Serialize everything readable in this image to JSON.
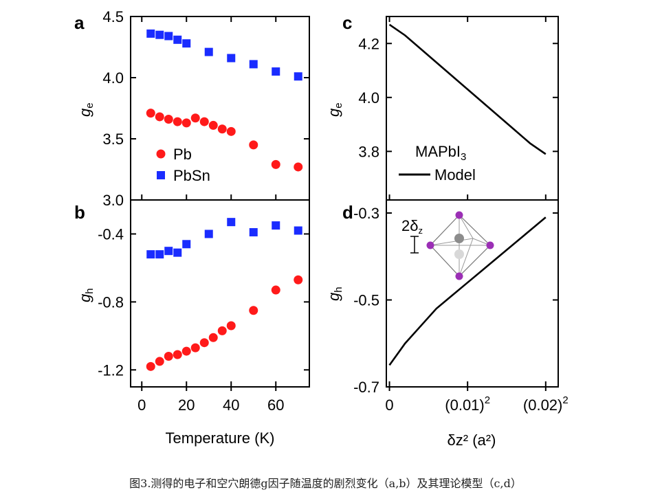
{
  "caption": "图3.测得的电子和空穴朗德g因子随温度的剧烈变化（a,b）及其理论模型（c,d）",
  "colors": {
    "pb": "#ff1a1a",
    "pbsn": "#1a2cff",
    "line": "#000000",
    "atom_purple": "#9b2fb5",
    "atom_gray": "#8c8c8c"
  },
  "chart_data": [
    {
      "panel": "a",
      "type": "scatter",
      "ylabel": "g",
      "ylabel_sub": "e",
      "xlim": [
        -5,
        75
      ],
      "ylim": [
        3.0,
        4.5
      ],
      "yticks": [
        3.0,
        3.5,
        4.0,
        4.5
      ],
      "ytick_labels": [
        "3.0",
        "3.5",
        "4.0",
        "4.5"
      ],
      "legend": {
        "placement": "bottom-left",
        "entries": [
          "Pb",
          "PbSn"
        ]
      },
      "series": [
        {
          "name": "PbSn",
          "marker": "square",
          "x": [
            4,
            8,
            12,
            16,
            20,
            30,
            40,
            50,
            60,
            70
          ],
          "y": [
            4.36,
            4.35,
            4.34,
            4.31,
            4.28,
            4.21,
            4.16,
            4.11,
            4.05,
            4.01
          ]
        },
        {
          "name": "Pb",
          "marker": "circle",
          "x": [
            4,
            8,
            12,
            16,
            20,
            24,
            28,
            32,
            36,
            40,
            50,
            60,
            70
          ],
          "y": [
            3.71,
            3.68,
            3.66,
            3.64,
            3.63,
            3.67,
            3.64,
            3.61,
            3.58,
            3.56,
            3.45,
            3.29,
            3.27
          ]
        }
      ]
    },
    {
      "panel": "b",
      "type": "scatter",
      "ylabel": "g",
      "ylabel_sub": "h",
      "xlabel": "Temperature (K)",
      "xlim": [
        -5,
        75
      ],
      "ylim": [
        -1.3,
        -0.2
      ],
      "xticks": [
        0,
        20,
        40,
        60
      ],
      "xtick_labels": [
        "0",
        "20",
        "40",
        "60"
      ],
      "yticks": [
        -1.2,
        -0.8,
        -0.4
      ],
      "ytick_labels": [
        "-1.2",
        "-0.8",
        "-0.4"
      ],
      "series": [
        {
          "name": "PbSn",
          "marker": "square",
          "x": [
            4,
            8,
            12,
            16,
            20,
            30,
            40,
            50,
            60,
            70
          ],
          "y": [
            -0.52,
            -0.52,
            -0.5,
            -0.51,
            -0.46,
            -0.4,
            -0.33,
            -0.39,
            -0.35,
            -0.38
          ]
        },
        {
          "name": "Pb",
          "marker": "circle",
          "x": [
            4,
            8,
            12,
            16,
            20,
            24,
            28,
            32,
            36,
            40,
            50,
            60,
            70
          ],
          "y": [
            -1.18,
            -1.15,
            -1.12,
            -1.11,
            -1.09,
            -1.07,
            -1.04,
            -1.01,
            -0.97,
            -0.94,
            -0.85,
            -0.73,
            -0.67
          ]
        }
      ]
    },
    {
      "panel": "c",
      "type": "line",
      "ylabel": "g",
      "ylabel_sub": "e",
      "xlim": [
        -0.02,
        1.08
      ],
      "ylim": [
        3.62,
        4.3
      ],
      "yticks": [
        3.8,
        4.0,
        4.2
      ],
      "ytick_labels": [
        "3.8",
        "4.0",
        "4.2"
      ],
      "legend": {
        "placement": "bottom-right",
        "material": "MAPbI",
        "material_sub": "3",
        "entries": [
          "Model"
        ]
      },
      "series": [
        {
          "name": "Model",
          "x": [
            0,
            0.1,
            0.2,
            0.3,
            0.4,
            0.5,
            0.6,
            0.7,
            0.8,
            0.9,
            1.0
          ],
          "y": [
            4.27,
            4.23,
            4.18,
            4.13,
            4.08,
            4.03,
            3.98,
            3.93,
            3.88,
            3.83,
            3.79
          ]
        }
      ]
    },
    {
      "panel": "d",
      "type": "line",
      "ylabel": "g",
      "ylabel_sub": "h",
      "xlabel": "δz² (a²)",
      "xlim": [
        -0.02,
        1.08
      ],
      "ylim": [
        -0.7,
        -0.27
      ],
      "xticks": [
        0,
        0.5,
        1.0
      ],
      "xtick_labels": [
        "0",
        "(0.01)",
        "(0.02)"
      ],
      "xtick_sup": [
        "",
        "2",
        "2"
      ],
      "yticks": [
        -0.7,
        -0.5,
        -0.3
      ],
      "ytick_labels": [
        "-0.7",
        "-0.5",
        "-0.3"
      ],
      "inset": {
        "label": "2δ",
        "label_sub": "z"
      },
      "series": [
        {
          "name": "Model",
          "x": [
            0,
            0.1,
            0.2,
            0.3,
            0.4,
            0.5,
            0.6,
            0.7,
            0.8,
            0.9,
            1.0
          ],
          "y": [
            -0.65,
            -0.6,
            -0.56,
            -0.52,
            -0.49,
            -0.46,
            -0.43,
            -0.4,
            -0.37,
            -0.34,
            -0.31
          ]
        }
      ]
    }
  ]
}
